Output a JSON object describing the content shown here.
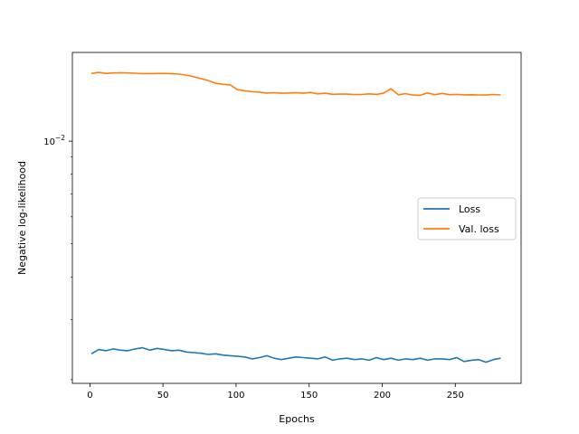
{
  "chart_data": {
    "type": "line",
    "xlabel": "Epochs",
    "ylabel": "Negative log-likelihood",
    "xlim": [
      -12,
      295
    ],
    "ylim": [
      0.00195,
      0.0182
    ],
    "yscale": "log",
    "grid": false,
    "x_ticks": [
      0,
      50,
      100,
      150,
      200,
      250
    ],
    "x_tick_labels": [
      "0",
      "50",
      "100",
      "150",
      "200",
      "250"
    ],
    "y_ticks": [
      0.01
    ],
    "y_tick_base": "10",
    "y_tick_exponent": "−2",
    "legend_position": "center-right",
    "series": [
      {
        "name": "Loss",
        "color": "#1f77b4",
        "x": [
          1,
          6,
          11,
          16,
          21,
          26,
          31,
          36,
          41,
          46,
          51,
          56,
          61,
          66,
          71,
          76,
          81,
          86,
          91,
          96,
          101,
          106,
          111,
          116,
          121,
          126,
          131,
          136,
          141,
          146,
          151,
          156,
          161,
          166,
          171,
          176,
          181,
          186,
          191,
          196,
          201,
          206,
          211,
          216,
          221,
          226,
          231,
          236,
          241,
          246,
          251,
          256,
          261,
          266,
          271,
          276,
          281
        ],
        "y": [
          0.00238,
          0.00245,
          0.00243,
          0.00246,
          0.00244,
          0.00243,
          0.00246,
          0.00248,
          0.00244,
          0.00247,
          0.00245,
          0.00243,
          0.00244,
          0.00241,
          0.0024,
          0.00239,
          0.00237,
          0.00238,
          0.00236,
          0.00235,
          0.00234,
          0.00233,
          0.0023,
          0.00232,
          0.00235,
          0.00231,
          0.00229,
          0.00231,
          0.00233,
          0.00232,
          0.00231,
          0.0023,
          0.00233,
          0.00228,
          0.0023,
          0.00231,
          0.00229,
          0.0023,
          0.00228,
          0.00232,
          0.00229,
          0.00231,
          0.00228,
          0.0023,
          0.00229,
          0.00231,
          0.00228,
          0.0023,
          0.0023,
          0.00229,
          0.00232,
          0.00226,
          0.00228,
          0.00229,
          0.00225,
          0.00229,
          0.00231
        ]
      },
      {
        "name": "Val. loss",
        "color": "#ff7f0e",
        "x": [
          1,
          6,
          11,
          16,
          21,
          26,
          31,
          36,
          41,
          46,
          51,
          56,
          61,
          66,
          71,
          76,
          81,
          86,
          91,
          96,
          101,
          106,
          111,
          116,
          121,
          126,
          131,
          136,
          141,
          146,
          151,
          156,
          161,
          166,
          171,
          176,
          181,
          186,
          191,
          196,
          201,
          206,
          211,
          216,
          221,
          226,
          231,
          236,
          241,
          246,
          251,
          256,
          261,
          266,
          271,
          276,
          281
        ],
        "y": [
          0.0158,
          0.0159,
          0.0158,
          0.01585,
          0.01587,
          0.01585,
          0.01582,
          0.01578,
          0.01578,
          0.01579,
          0.0158,
          0.01576,
          0.01572,
          0.01562,
          0.01545,
          0.01525,
          0.01505,
          0.01478,
          0.01468,
          0.01462,
          0.01415,
          0.01405,
          0.01396,
          0.01392,
          0.01384,
          0.01386,
          0.01382,
          0.01384,
          0.01386,
          0.01382,
          0.0139,
          0.01376,
          0.01382,
          0.01372,
          0.01374,
          0.01374,
          0.0137,
          0.0137,
          0.01376,
          0.01371,
          0.01382,
          0.01425,
          0.01368,
          0.01378,
          0.01365,
          0.01363,
          0.01385,
          0.01369,
          0.0138,
          0.01369,
          0.01371,
          0.01367,
          0.01368,
          0.01366,
          0.01365,
          0.0137,
          0.01366
        ]
      }
    ]
  }
}
